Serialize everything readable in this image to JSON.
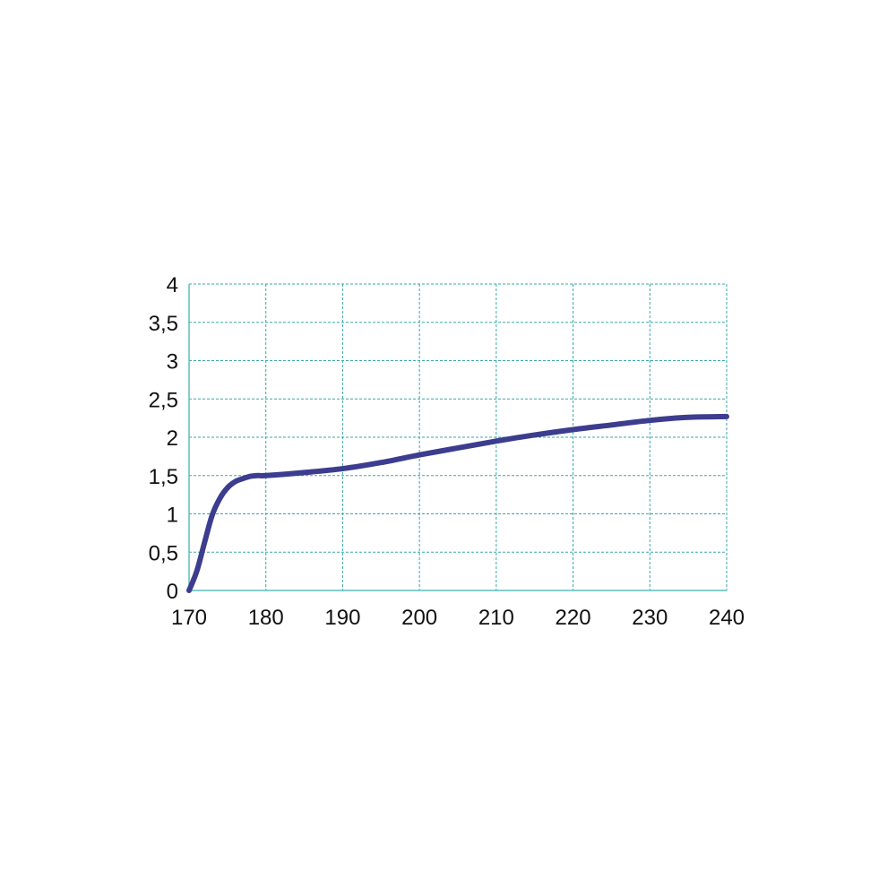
{
  "chart_data": {
    "type": "line",
    "title": "",
    "xlabel": "",
    "ylabel": "",
    "xlim": [
      170,
      240
    ],
    "ylim": [
      0,
      4
    ],
    "grid": true,
    "x_ticks": [
      "170",
      "180",
      "190",
      "200",
      "210",
      "220",
      "230",
      "240"
    ],
    "y_ticks": [
      "0",
      "0,5",
      "1",
      "1,5",
      "2",
      "2,5",
      "3",
      "3,5",
      "4"
    ],
    "series": [
      {
        "x": [
          170,
          171,
          172,
          173,
          174,
          175,
          176,
          177,
          178,
          179,
          180,
          185,
          190,
          195,
          200,
          205,
          210,
          215,
          220,
          225,
          230,
          235,
          240
        ],
        "y": [
          0,
          0.25,
          0.62,
          0.98,
          1.2,
          1.34,
          1.42,
          1.46,
          1.49,
          1.5,
          1.5,
          1.54,
          1.59,
          1.67,
          1.77,
          1.86,
          1.95,
          2.03,
          2.1,
          2.16,
          2.22,
          2.26,
          2.27
        ]
      }
    ],
    "colors": {
      "line": "#3c3d8f",
      "grid": "#3aa7a7",
      "axis": "#5bbdbd"
    }
  }
}
